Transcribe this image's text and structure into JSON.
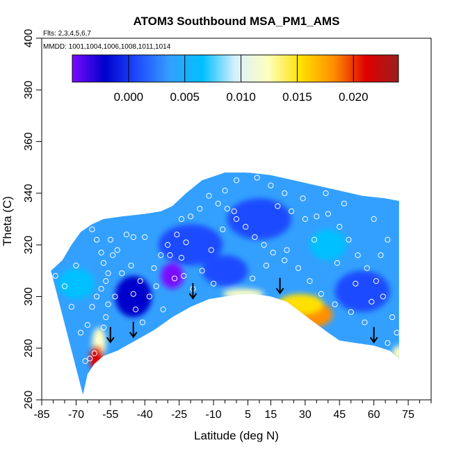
{
  "chart_data": {
    "type": "heatmap",
    "title": "ATOM3 Southbound MSA_PM1_AMS",
    "subtitle_flights": "Flts: 2,3,4,5,6,7",
    "subtitle_dates": "MMDD: 1001,1004,1006,1008,1011,1014",
    "xlabel": "Latitude (deg N)",
    "ylabel": "Theta (C)",
    "xlim": [
      -85,
      85
    ],
    "ylim": [
      260,
      400
    ],
    "x_ticks": [
      -85,
      -70,
      -55,
      -40,
      -25,
      -10,
      5,
      15,
      30,
      45,
      60,
      75
    ],
    "x_tick_labels": [
      "-85",
      "-70",
      "-55",
      "-40",
      "-25",
      "-10",
      "5",
      "15",
      "30",
      "45",
      "60",
      "75"
    ],
    "y_ticks": [
      260,
      280,
      300,
      320,
      340,
      360,
      380,
      400
    ],
    "y_tick_labels": [
      "260",
      "280",
      "300",
      "320",
      "340",
      "360",
      "380",
      "400"
    ],
    "colorbar": {
      "range": [
        -0.005,
        0.024
      ],
      "ticks": [
        0.0,
        0.005,
        0.01,
        0.015,
        0.02
      ],
      "tick_labels": [
        "0.000",
        "0.005",
        "0.010",
        "0.015",
        "0.020"
      ],
      "colors": [
        "#7a0aff",
        "#0000cc",
        "#1f4cff",
        "#33a0ff",
        "#00c0ff",
        "#d8f0ff",
        "#ffffc0",
        "#ffe000",
        "#ff9000",
        "#e00000",
        "#9a1f1f"
      ]
    },
    "top_boundary": [
      [
        -81,
        310
      ],
      [
        -76,
        314
      ],
      [
        -72,
        320
      ],
      [
        -68,
        325
      ],
      [
        -63,
        328
      ],
      [
        -58,
        330
      ],
      [
        -50,
        331
      ],
      [
        -40,
        332
      ],
      [
        -33,
        333
      ],
      [
        -28,
        335
      ],
      [
        -22,
        340
      ],
      [
        -15,
        345
      ],
      [
        -5,
        348
      ],
      [
        5,
        348
      ],
      [
        15,
        347
      ],
      [
        25,
        345
      ],
      [
        35,
        343
      ],
      [
        45,
        341
      ],
      [
        55,
        339
      ],
      [
        65,
        338
      ],
      [
        71,
        337
      ]
    ],
    "bottom_boundary": [
      [
        71,
        276
      ],
      [
        67,
        279
      ],
      [
        60,
        281
      ],
      [
        52,
        282
      ],
      [
        45,
        283
      ],
      [
        40,
        286
      ],
      [
        34,
        290
      ],
      [
        28,
        294
      ],
      [
        22,
        298
      ],
      [
        15,
        300
      ],
      [
        8,
        301
      ],
      [
        2,
        301
      ],
      [
        -5,
        300
      ],
      [
        -12,
        299
      ],
      [
        -20,
        296
      ],
      [
        -28,
        292
      ],
      [
        -36,
        287
      ],
      [
        -44,
        283
      ],
      [
        -52,
        279
      ],
      [
        -58,
        277
      ],
      [
        -62,
        274
      ],
      [
        -65,
        270
      ],
      [
        -67,
        262
      ]
    ],
    "anomalies": [
      {
        "lat": -60,
        "theta": 282,
        "value": 0.012,
        "rx": 3,
        "ry": 6
      },
      {
        "lat": -61,
        "theta": 276,
        "value": 0.022,
        "rx": 3,
        "ry": 5
      },
      {
        "lat": 33,
        "theta": 293,
        "value": 0.018,
        "rx": 9,
        "ry": 5
      },
      {
        "lat": 28,
        "theta": 297,
        "value": 0.014,
        "rx": 10,
        "ry": 4
      },
      {
        "lat": 3,
        "theta": 301,
        "value": 0.012,
        "rx": 9,
        "ry": 2
      },
      {
        "lat": 71,
        "theta": 278,
        "value": 0.013,
        "rx": 3,
        "ry": 3
      },
      {
        "lat": -28,
        "theta": 308,
        "value": -0.004,
        "rx": 5,
        "ry": 5
      },
      {
        "lat": -45,
        "theta": 300,
        "value": -0.001,
        "rx": 8,
        "ry": 8
      },
      {
        "lat": -20,
        "theta": 320,
        "value": 0.0,
        "rx": 14,
        "ry": 8
      },
      {
        "lat": 10,
        "theta": 330,
        "value": 0.0,
        "rx": 14,
        "ry": 8
      },
      {
        "lat": 55,
        "theta": 302,
        "value": 0.0,
        "rx": 12,
        "ry": 8
      },
      {
        "lat": -5,
        "theta": 310,
        "value": 0.001,
        "rx": 10,
        "ry": 6
      },
      {
        "lat": 40,
        "theta": 320,
        "value": 0.008,
        "rx": 8,
        "ry": 6
      },
      {
        "lat": -70,
        "theta": 305,
        "value": 0.006,
        "rx": 8,
        "ry": 6
      }
    ],
    "observations": [
      [
        -66,
        275
      ],
      [
        -64,
        276
      ],
      [
        -62,
        278
      ],
      [
        -60,
        283
      ],
      [
        -58,
        288
      ],
      [
        -57,
        292
      ],
      [
        -56,
        297
      ],
      [
        -63,
        296
      ],
      [
        -61,
        300
      ],
      [
        -59,
        303
      ],
      [
        -57,
        306
      ],
      [
        -56,
        309
      ],
      [
        -58,
        313
      ],
      [
        -59,
        317
      ],
      [
        -61,
        322
      ],
      [
        -55,
        322
      ],
      [
        -52,
        318
      ],
      [
        -48,
        324
      ],
      [
        -45,
        323
      ],
      [
        -40,
        323
      ],
      [
        -50,
        309
      ],
      [
        -45,
        301
      ],
      [
        -44,
        295
      ],
      [
        -41,
        290
      ],
      [
        -38,
        300
      ],
      [
        -36,
        311
      ],
      [
        -33,
        316
      ],
      [
        -30,
        320
      ],
      [
        -26,
        324
      ],
      [
        -24,
        330
      ],
      [
        -20,
        331
      ],
      [
        -27,
        307
      ],
      [
        -24,
        315
      ],
      [
        -22,
        321
      ],
      [
        -19,
        303
      ],
      [
        -15,
        310
      ],
      [
        -11,
        318
      ],
      [
        -6,
        326
      ],
      [
        -1,
        333
      ],
      [
        -12,
        339
      ],
      [
        -5,
        341
      ],
      [
        0,
        345
      ],
      [
        5,
        349
      ],
      [
        9,
        346
      ],
      [
        15,
        343
      ],
      [
        21,
        340
      ],
      [
        24,
        333
      ],
      [
        30,
        330
      ],
      [
        35,
        331
      ],
      [
        40,
        332
      ],
      [
        45,
        327
      ],
      [
        49,
        322
      ],
      [
        53,
        316
      ],
      [
        57,
        311
      ],
      [
        61,
        306
      ],
      [
        64,
        300
      ],
      [
        68,
        292
      ],
      [
        70,
        286
      ],
      [
        56,
        290
      ],
      [
        50,
        294
      ],
      [
        43,
        297
      ],
      [
        37,
        301
      ],
      [
        32,
        306
      ],
      [
        27,
        311
      ],
      [
        21,
        314
      ],
      [
        16,
        317
      ],
      [
        12,
        320
      ],
      [
        8,
        323
      ],
      [
        4,
        327
      ],
      [
        0,
        330
      ],
      [
        -4,
        334
      ],
      [
        -8,
        336
      ],
      [
        -16,
        334
      ],
      [
        -29,
        316
      ],
      [
        -35,
        304
      ],
      [
        -46,
        312
      ],
      [
        -53,
        300
      ],
      [
        -65,
        289
      ],
      [
        -68,
        286
      ],
      [
        -72,
        296
      ],
      [
        -75,
        304
      ],
      [
        -79,
        308
      ],
      [
        -70,
        312
      ],
      [
        -63,
        326
      ],
      [
        -54,
        316
      ],
      [
        -42,
        306
      ],
      [
        -32,
        295
      ],
      [
        -23,
        308
      ],
      [
        -10,
        305
      ],
      [
        7,
        307
      ],
      [
        13,
        312
      ],
      [
        22,
        318
      ],
      [
        34,
        322
      ],
      [
        44,
        313
      ],
      [
        52,
        305
      ],
      [
        59,
        298
      ],
      [
        66,
        282
      ],
      [
        18,
        335
      ],
      [
        29,
        338
      ],
      [
        39,
        340
      ],
      [
        47,
        336
      ],
      [
        60,
        330
      ],
      [
        66,
        322
      ],
      [
        63,
        316
      ]
    ],
    "arrows": [
      {
        "lat": -55,
        "theta": 285
      },
      {
        "lat": -45,
        "theta": 287
      },
      {
        "lat": -19,
        "theta": 302
      },
      {
        "lat": 19,
        "theta": 304
      },
      {
        "lat": 60,
        "theta": 285
      }
    ]
  }
}
